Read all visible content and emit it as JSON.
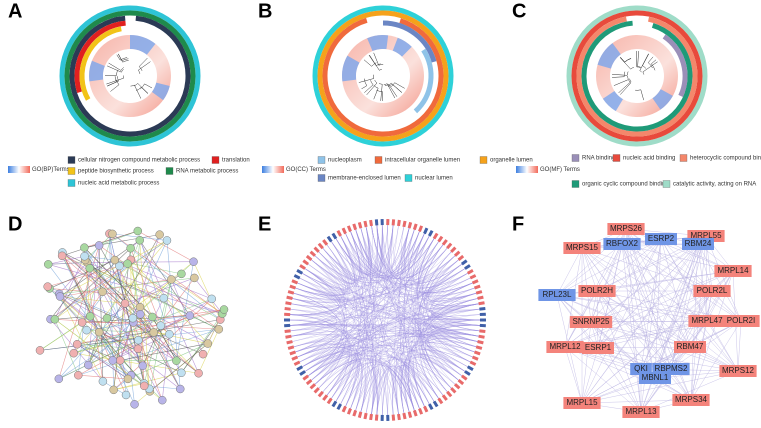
{
  "panels": [
    {
      "label": "A",
      "legend_title": "GO(BP)Terms",
      "terms": [
        {
          "name": "cellular nitrogen compound metabolic process",
          "color": "#2b3a55"
        },
        {
          "name": "translation",
          "color": "#e02020"
        },
        {
          "name": "peptide biosynthetic process",
          "color": "#f2c318"
        },
        {
          "name": "RNA metabolic process",
          "color": "#1f8a4c"
        },
        {
          "name": "nucleic acid metabolic process",
          "color": "#2ec4d6"
        }
      ]
    },
    {
      "label": "B",
      "legend_title": "GO(CC) Terms",
      "terms": [
        {
          "name": "nucleoplasm",
          "color": "#8fc3e8"
        },
        {
          "name": "intracellular organelle lumen",
          "color": "#f06a3c"
        },
        {
          "name": "organelle lumen",
          "color": "#f5a21b"
        },
        {
          "name": "membrane-enclosed lumen",
          "color": "#6b86c4"
        },
        {
          "name": "nuclear lumen",
          "color": "#2ed1d8"
        }
      ]
    },
    {
      "label": "C",
      "legend_title": "GO(MF) Terms",
      "terms": [
        {
          "name": "RNA binding",
          "color": "#9a8fb8"
        },
        {
          "name": "nucleic acid binding",
          "color": "#e84a3c"
        },
        {
          "name": "heterocyclic compound binding",
          "color": "#f4876b"
        },
        {
          "name": "organic cyclic compound binding",
          "color": "#1f9a78"
        },
        {
          "name": "catalytic activity, acting on RNA",
          "color": "#9fdcc8"
        }
      ]
    },
    {
      "label": "D"
    },
    {
      "label": "E"
    },
    {
      "label": "F",
      "nodes": [
        {
          "name": "MRPS26",
          "color": "#f4837b"
        },
        {
          "name": "MRPL55",
          "color": "#f4837b"
        },
        {
          "name": "MRPS15",
          "color": "#f4837b"
        },
        {
          "name": "ESRP2",
          "color": "#6f95e6"
        },
        {
          "name": "RBFOX2",
          "color": "#6f95e6"
        },
        {
          "name": "RBM24",
          "color": "#6f95e6"
        },
        {
          "name": "MRPL14",
          "color": "#f4837b"
        },
        {
          "name": "RPL23L",
          "color": "#6f95e6"
        },
        {
          "name": "POLR2H",
          "color": "#f4837b"
        },
        {
          "name": "POLR2L",
          "color": "#f4837b"
        },
        {
          "name": "POLR2I",
          "color": "#f4837b"
        },
        {
          "name": "SNRNP25",
          "color": "#f4837b"
        },
        {
          "name": "MRPL47",
          "color": "#f4837b"
        },
        {
          "name": "MRPL12",
          "color": "#f4837b"
        },
        {
          "name": "ESRP1",
          "color": "#f4837b"
        },
        {
          "name": "RBM47",
          "color": "#f4837b"
        },
        {
          "name": "QKI",
          "color": "#6f95e6"
        },
        {
          "name": "RBPMS2",
          "color": "#6f95e6"
        },
        {
          "name": "MBNL1",
          "color": "#6f95e6"
        },
        {
          "name": "MRPS12",
          "color": "#f4837b"
        },
        {
          "name": "MRPL15",
          "color": "#f4837b"
        },
        {
          "name": "MRPS34",
          "color": "#f4837b"
        },
        {
          "name": "MRPL13",
          "color": "#f4837b"
        }
      ]
    }
  ]
}
